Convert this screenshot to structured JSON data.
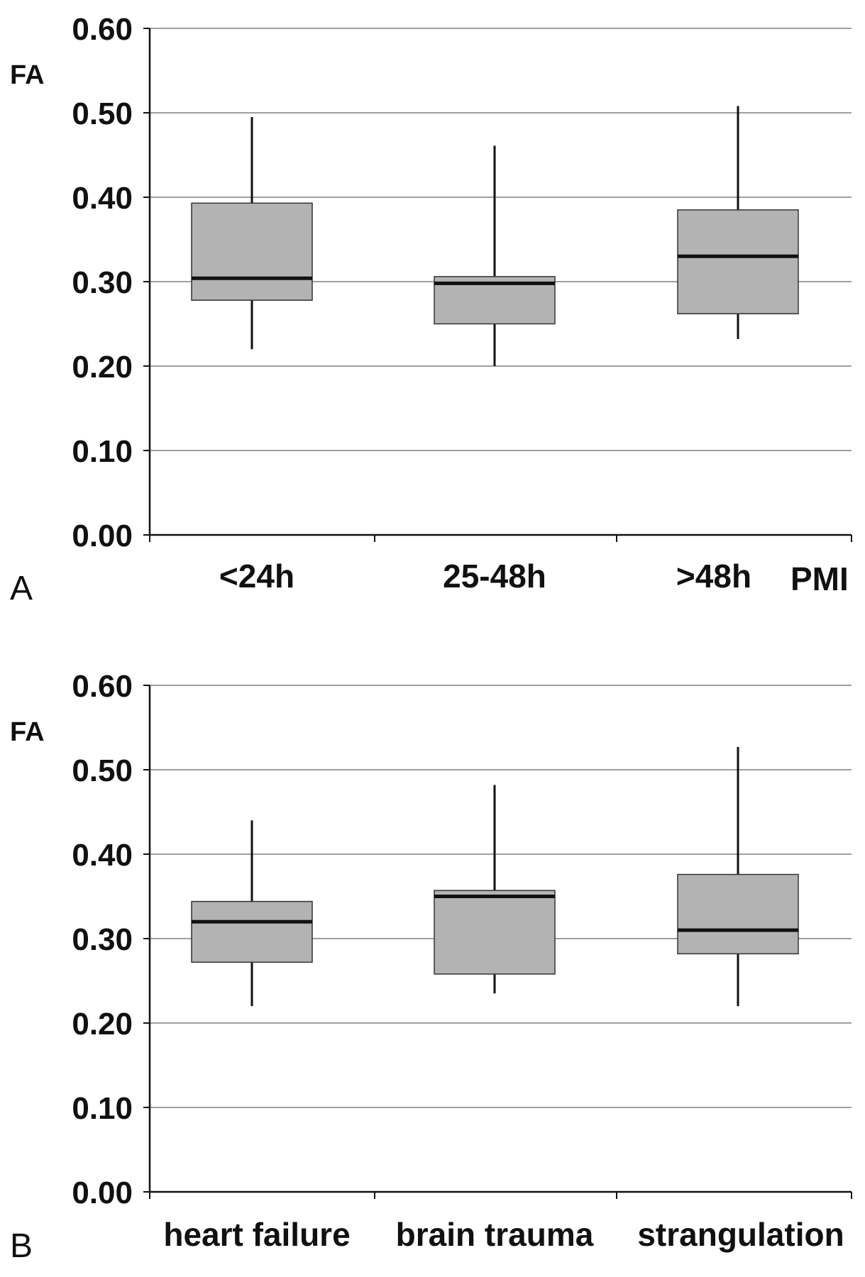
{
  "chart_data": [
    {
      "type": "box",
      "panel": "A",
      "ylabel": "FA",
      "xlabel": "PMI",
      "ylim": [
        0,
        0.6
      ],
      "yticks": [
        "0.00",
        "0.10",
        "0.20",
        "0.30",
        "0.40",
        "0.50",
        "0.60"
      ],
      "grid": true,
      "categories": [
        "<24h",
        "25-48h",
        ">48h"
      ],
      "boxes": [
        {
          "min": 0.22,
          "q1": 0.278,
          "median": 0.304,
          "q3": 0.393,
          "max": 0.495
        },
        {
          "min": 0.2,
          "q1": 0.25,
          "median": 0.298,
          "q3": 0.306,
          "max": 0.461
        },
        {
          "min": 0.232,
          "q1": 0.262,
          "median": 0.33,
          "q3": 0.385,
          "max": 0.508
        }
      ],
      "colors": {
        "box_fill": "#b3b3b3",
        "median": "#111111",
        "grid": "#666666"
      }
    },
    {
      "type": "box",
      "panel": "B",
      "ylabel": "FA",
      "xlabel": "",
      "ylim": [
        0,
        0.6
      ],
      "yticks": [
        "0.00",
        "0.10",
        "0.20",
        "0.30",
        "0.40",
        "0.50",
        "0.60"
      ],
      "grid": true,
      "categories": [
        "heart failure",
        "brain trauma",
        "strangulation"
      ],
      "boxes": [
        {
          "min": 0.22,
          "q1": 0.272,
          "median": 0.32,
          "q3": 0.344,
          "max": 0.44
        },
        {
          "min": 0.235,
          "q1": 0.258,
          "median": 0.35,
          "q3": 0.357,
          "max": 0.482
        },
        {
          "min": 0.22,
          "q1": 0.282,
          "median": 0.31,
          "q3": 0.376,
          "max": 0.527
        }
      ],
      "colors": {
        "box_fill": "#b3b3b3",
        "median": "#111111",
        "grid": "#666666"
      }
    }
  ]
}
